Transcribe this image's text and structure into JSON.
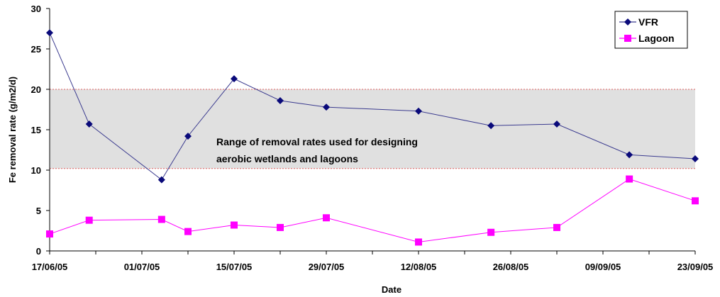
{
  "chart_data": {
    "type": "line",
    "xlabel": "Date",
    "ylabel": "Fe removal rate (g/m2/d)",
    "x_ticks": [
      "17/06/05",
      "01/07/05",
      "15/07/05",
      "29/07/05",
      "12/08/05",
      "26/08/05",
      "09/09/05",
      "23/09/05"
    ],
    "x_tick_days": [
      0,
      14,
      28,
      42,
      56,
      70,
      84,
      98
    ],
    "xlim_days": [
      0,
      98
    ],
    "ylim": [
      0,
      30
    ],
    "y_ticks": [
      0,
      5,
      10,
      15,
      20,
      25,
      30
    ],
    "grid": false,
    "legend_position": "top-right",
    "band": {
      "low": 10.2,
      "high": 20.0,
      "fill": "#e0e0e0",
      "border_color": "#e06060",
      "label_lines": [
        "Range of removal rates used for designing",
        "aerobic wetlands and lagoons"
      ]
    },
    "series": [
      {
        "name": "VFR",
        "color": "#3b3b8f",
        "marker_color": "#0a0a7a",
        "marker": "diamond",
        "points": [
          {
            "date": "17/06/05",
            "day": 0,
            "y": 27.0
          },
          {
            "date": "23/06/05",
            "day": 6,
            "y": 15.7
          },
          {
            "date": "04/07/05",
            "day": 17,
            "y": 8.8
          },
          {
            "date": "08/07/05",
            "day": 21,
            "y": 14.2
          },
          {
            "date": "15/07/05",
            "day": 28,
            "y": 21.3
          },
          {
            "date": "22/07/05",
            "day": 35,
            "y": 18.6
          },
          {
            "date": "29/07/05",
            "day": 42,
            "y": 17.8
          },
          {
            "date": "12/08/05",
            "day": 56,
            "y": 17.3
          },
          {
            "date": "23/08/05",
            "day": 67,
            "y": 15.5
          },
          {
            "date": "02/09/05",
            "day": 77,
            "y": 15.7
          },
          {
            "date": "13/09/05",
            "day": 88,
            "y": 11.9
          },
          {
            "date": "23/09/05",
            "day": 98,
            "y": 11.4
          }
        ]
      },
      {
        "name": "Lagoon",
        "color": "#ff00ff",
        "marker_color": "#ff00ff",
        "marker": "square",
        "points": [
          {
            "date": "17/06/05",
            "day": 0,
            "y": 2.1
          },
          {
            "date": "23/06/05",
            "day": 6,
            "y": 3.8
          },
          {
            "date": "04/07/05",
            "day": 17,
            "y": 3.9
          },
          {
            "date": "08/07/05",
            "day": 21,
            "y": 2.4
          },
          {
            "date": "15/07/05",
            "day": 28,
            "y": 3.2
          },
          {
            "date": "22/07/05",
            "day": 35,
            "y": 2.9
          },
          {
            "date": "29/07/05",
            "day": 42,
            "y": 4.1
          },
          {
            "date": "12/08/05",
            "day": 56,
            "y": 1.1
          },
          {
            "date": "23/08/05",
            "day": 67,
            "y": 2.3
          },
          {
            "date": "02/09/05",
            "day": 77,
            "y": 2.9
          },
          {
            "date": "13/09/05",
            "day": 88,
            "y": 8.9
          },
          {
            "date": "23/09/05",
            "day": 98,
            "y": 6.2
          }
        ]
      }
    ]
  }
}
